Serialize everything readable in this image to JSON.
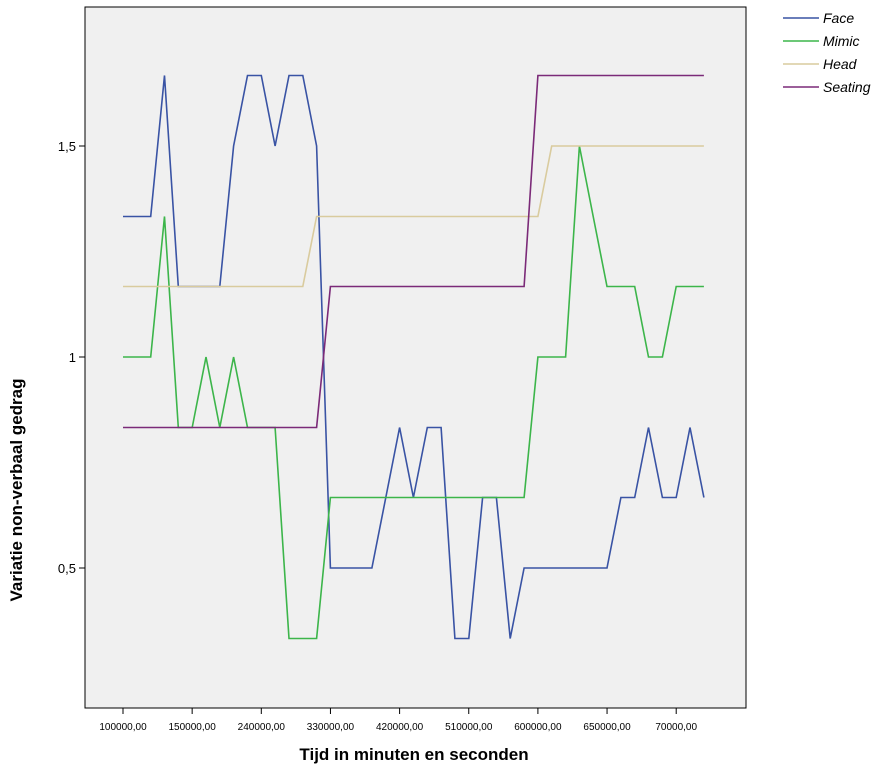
{
  "chart_data": {
    "type": "line",
    "xlabel": "Tijd in minuten en seconden",
    "ylabel": "Variatie non-verbaal gedrag",
    "ylim": [
      0.2,
      1.85
    ],
    "yticks": [
      {
        "value": 0.5,
        "label": "0,5"
      },
      {
        "value": 1.0,
        "label": "1"
      },
      {
        "value": 1.5,
        "label": "1,5"
      }
    ],
    "xtick_labels": [
      "100000,00",
      "150000,00",
      "240000,00",
      "330000,00",
      "420000,00",
      "510000,00",
      "600000,00",
      "650000,00",
      "70000,00"
    ],
    "xtick_positions": [
      0,
      5,
      10,
      15,
      20,
      25,
      30,
      35,
      40
    ],
    "x_range": [
      -2,
      45
    ],
    "grid": false,
    "legend_position": "top-right",
    "series": [
      {
        "name": "Face",
        "color": "#3953a4",
        "values": [
          1.333,
          1.333,
          1.333,
          1.667,
          1.167,
          1.167,
          1.167,
          1.167,
          1.5,
          1.667,
          1.667,
          1.5,
          1.667,
          1.667,
          1.5,
          0.5,
          0.5,
          0.5,
          0.5,
          0.667,
          0.833,
          0.667,
          0.833,
          0.833,
          0.333,
          0.333,
          0.667,
          0.667,
          0.333,
          0.5,
          0.5,
          0.5,
          0.5,
          0.5,
          0.5,
          0.5,
          0.667,
          0.667,
          0.833,
          0.667,
          0.667,
          0.833,
          0.667
        ]
      },
      {
        "name": "Mimic",
        "color": "#3cb54a",
        "values": [
          1.0,
          1.0,
          1.0,
          1.333,
          0.833,
          0.833,
          1.0,
          0.833,
          1.0,
          0.833,
          0.833,
          0.833,
          0.333,
          0.333,
          0.333,
          0.667,
          0.667,
          0.667,
          0.667,
          0.667,
          0.667,
          0.667,
          0.667,
          0.667,
          0.667,
          0.667,
          0.667,
          0.667,
          0.667,
          0.667,
          1.0,
          1.0,
          1.0,
          1.5,
          1.333,
          1.167,
          1.167,
          1.167,
          1.0,
          1.0,
          1.167,
          1.167,
          1.167
        ]
      },
      {
        "name": "Head",
        "color": "#d9cb9e",
        "values": [
          1.167,
          1.167,
          1.167,
          1.167,
          1.167,
          1.167,
          1.167,
          1.167,
          1.167,
          1.167,
          1.167,
          1.167,
          1.167,
          1.167,
          1.333,
          1.333,
          1.333,
          1.333,
          1.333,
          1.333,
          1.333,
          1.333,
          1.333,
          1.333,
          1.333,
          1.333,
          1.333,
          1.333,
          1.333,
          1.333,
          1.333,
          1.5,
          1.5,
          1.5,
          1.5,
          1.5,
          1.5,
          1.5,
          1.5,
          1.5,
          1.5,
          1.5,
          1.5
        ]
      },
      {
        "name": "Seating",
        "color": "#7b2a78",
        "values": [
          0.833,
          0.833,
          0.833,
          0.833,
          0.833,
          0.833,
          0.833,
          0.833,
          0.833,
          0.833,
          0.833,
          0.833,
          0.833,
          0.833,
          0.833,
          1.167,
          1.167,
          1.167,
          1.167,
          1.167,
          1.167,
          1.167,
          1.167,
          1.167,
          1.167,
          1.167,
          1.167,
          1.167,
          1.167,
          1.167,
          1.667,
          1.667,
          1.667,
          1.667,
          1.667,
          1.667,
          1.667,
          1.667,
          1.667,
          1.667,
          1.667,
          1.667,
          1.667
        ]
      }
    ]
  }
}
